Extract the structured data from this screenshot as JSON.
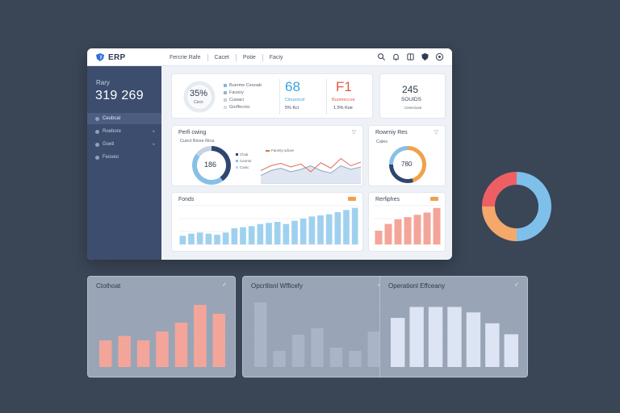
{
  "app": {
    "logo_text": "ERP",
    "nav": [
      "Fercrie Rafe",
      "Cacet",
      "Potie",
      "Faciy"
    ],
    "icons": [
      "search-icon",
      "bell-icon",
      "bookmark-icon",
      "shield-icon",
      "settings-icon"
    ]
  },
  "sidebar": {
    "label": "Rary",
    "value": "319 269",
    "items": [
      {
        "label": "Ceubcal"
      },
      {
        "label": "Roebore"
      },
      {
        "label": "Goeti"
      },
      {
        "label": "Feoveo"
      }
    ]
  },
  "kpi": {
    "gauge_value": "35%",
    "gauge_sub": "Cecn",
    "legend": [
      "Buerme Ceeoab",
      "Faceiry",
      "Cuwaci",
      "Gorffecrisi"
    ],
    "stat1": {
      "value": "68",
      "label": "Cinuencol",
      "sub": "5% Kci",
      "color": "#3aa0e0"
    },
    "stat2": {
      "value": "F1",
      "label": "Buomeccse",
      "sub": "1.5% Koe",
      "color": "#e05a4a"
    },
    "stat3": {
      "value": "245",
      "label": "SOUIDS",
      "sub": "Ceeeciuse"
    }
  },
  "perf": {
    "title": "Perfi cwing",
    "sub": "Cuect Bicee Rica",
    "donut_value": "186",
    "legend": [
      "Cloai",
      "Ceomir",
      "Caoic"
    ],
    "line_legend": "Faceiry sdcoe",
    "line_red": [
      22,
      30,
      34,
      28,
      33,
      20,
      35,
      26,
      42,
      30,
      36
    ],
    "line_gray": [
      14,
      22,
      26,
      20,
      24,
      30,
      22,
      18,
      30,
      24,
      28
    ]
  },
  "funnel": {
    "title": "Rowrniy Res",
    "sub": "Cales",
    "donut_value": "780",
    "segments": [
      {
        "value": 45,
        "color": "#f0a24a"
      },
      {
        "value": 30,
        "color": "#2f4670"
      },
      {
        "value": 25,
        "color": "#88bfe6"
      }
    ]
  },
  "trends": {
    "title": "Fonds",
    "bars": [
      8,
      10,
      11,
      10,
      9,
      11,
      15,
      16,
      17,
      19,
      20,
      21,
      19,
      22,
      24,
      26,
      27,
      28,
      30,
      32,
      34
    ]
  },
  "pipelines": {
    "title": "Rerfiphes",
    "bars": [
      12,
      18,
      22,
      24,
      26,
      28,
      32
    ]
  },
  "floating_donut": {
    "segments": [
      {
        "value": 50,
        "color": "#7ec0ea"
      },
      {
        "value": 25,
        "color": "#f4a86a"
      },
      {
        "value": 25,
        "color": "#ee5f63"
      }
    ]
  },
  "panels": [
    {
      "title": "Ctothoat",
      "bars": [
        6,
        7,
        6,
        8,
        10,
        14,
        12
      ],
      "color": "#f4a59a"
    },
    {
      "title": "Opcrtlisnl Wfficefy",
      "bars": [
        20,
        5,
        10,
        12,
        6,
        5,
        11
      ],
      "color": "#a9b4c6"
    },
    {
      "title": "Operationl Effceany",
      "bars": [
        9,
        11,
        11,
        11,
        10,
        8,
        6
      ],
      "color": "#dde4f4"
    }
  ]
}
